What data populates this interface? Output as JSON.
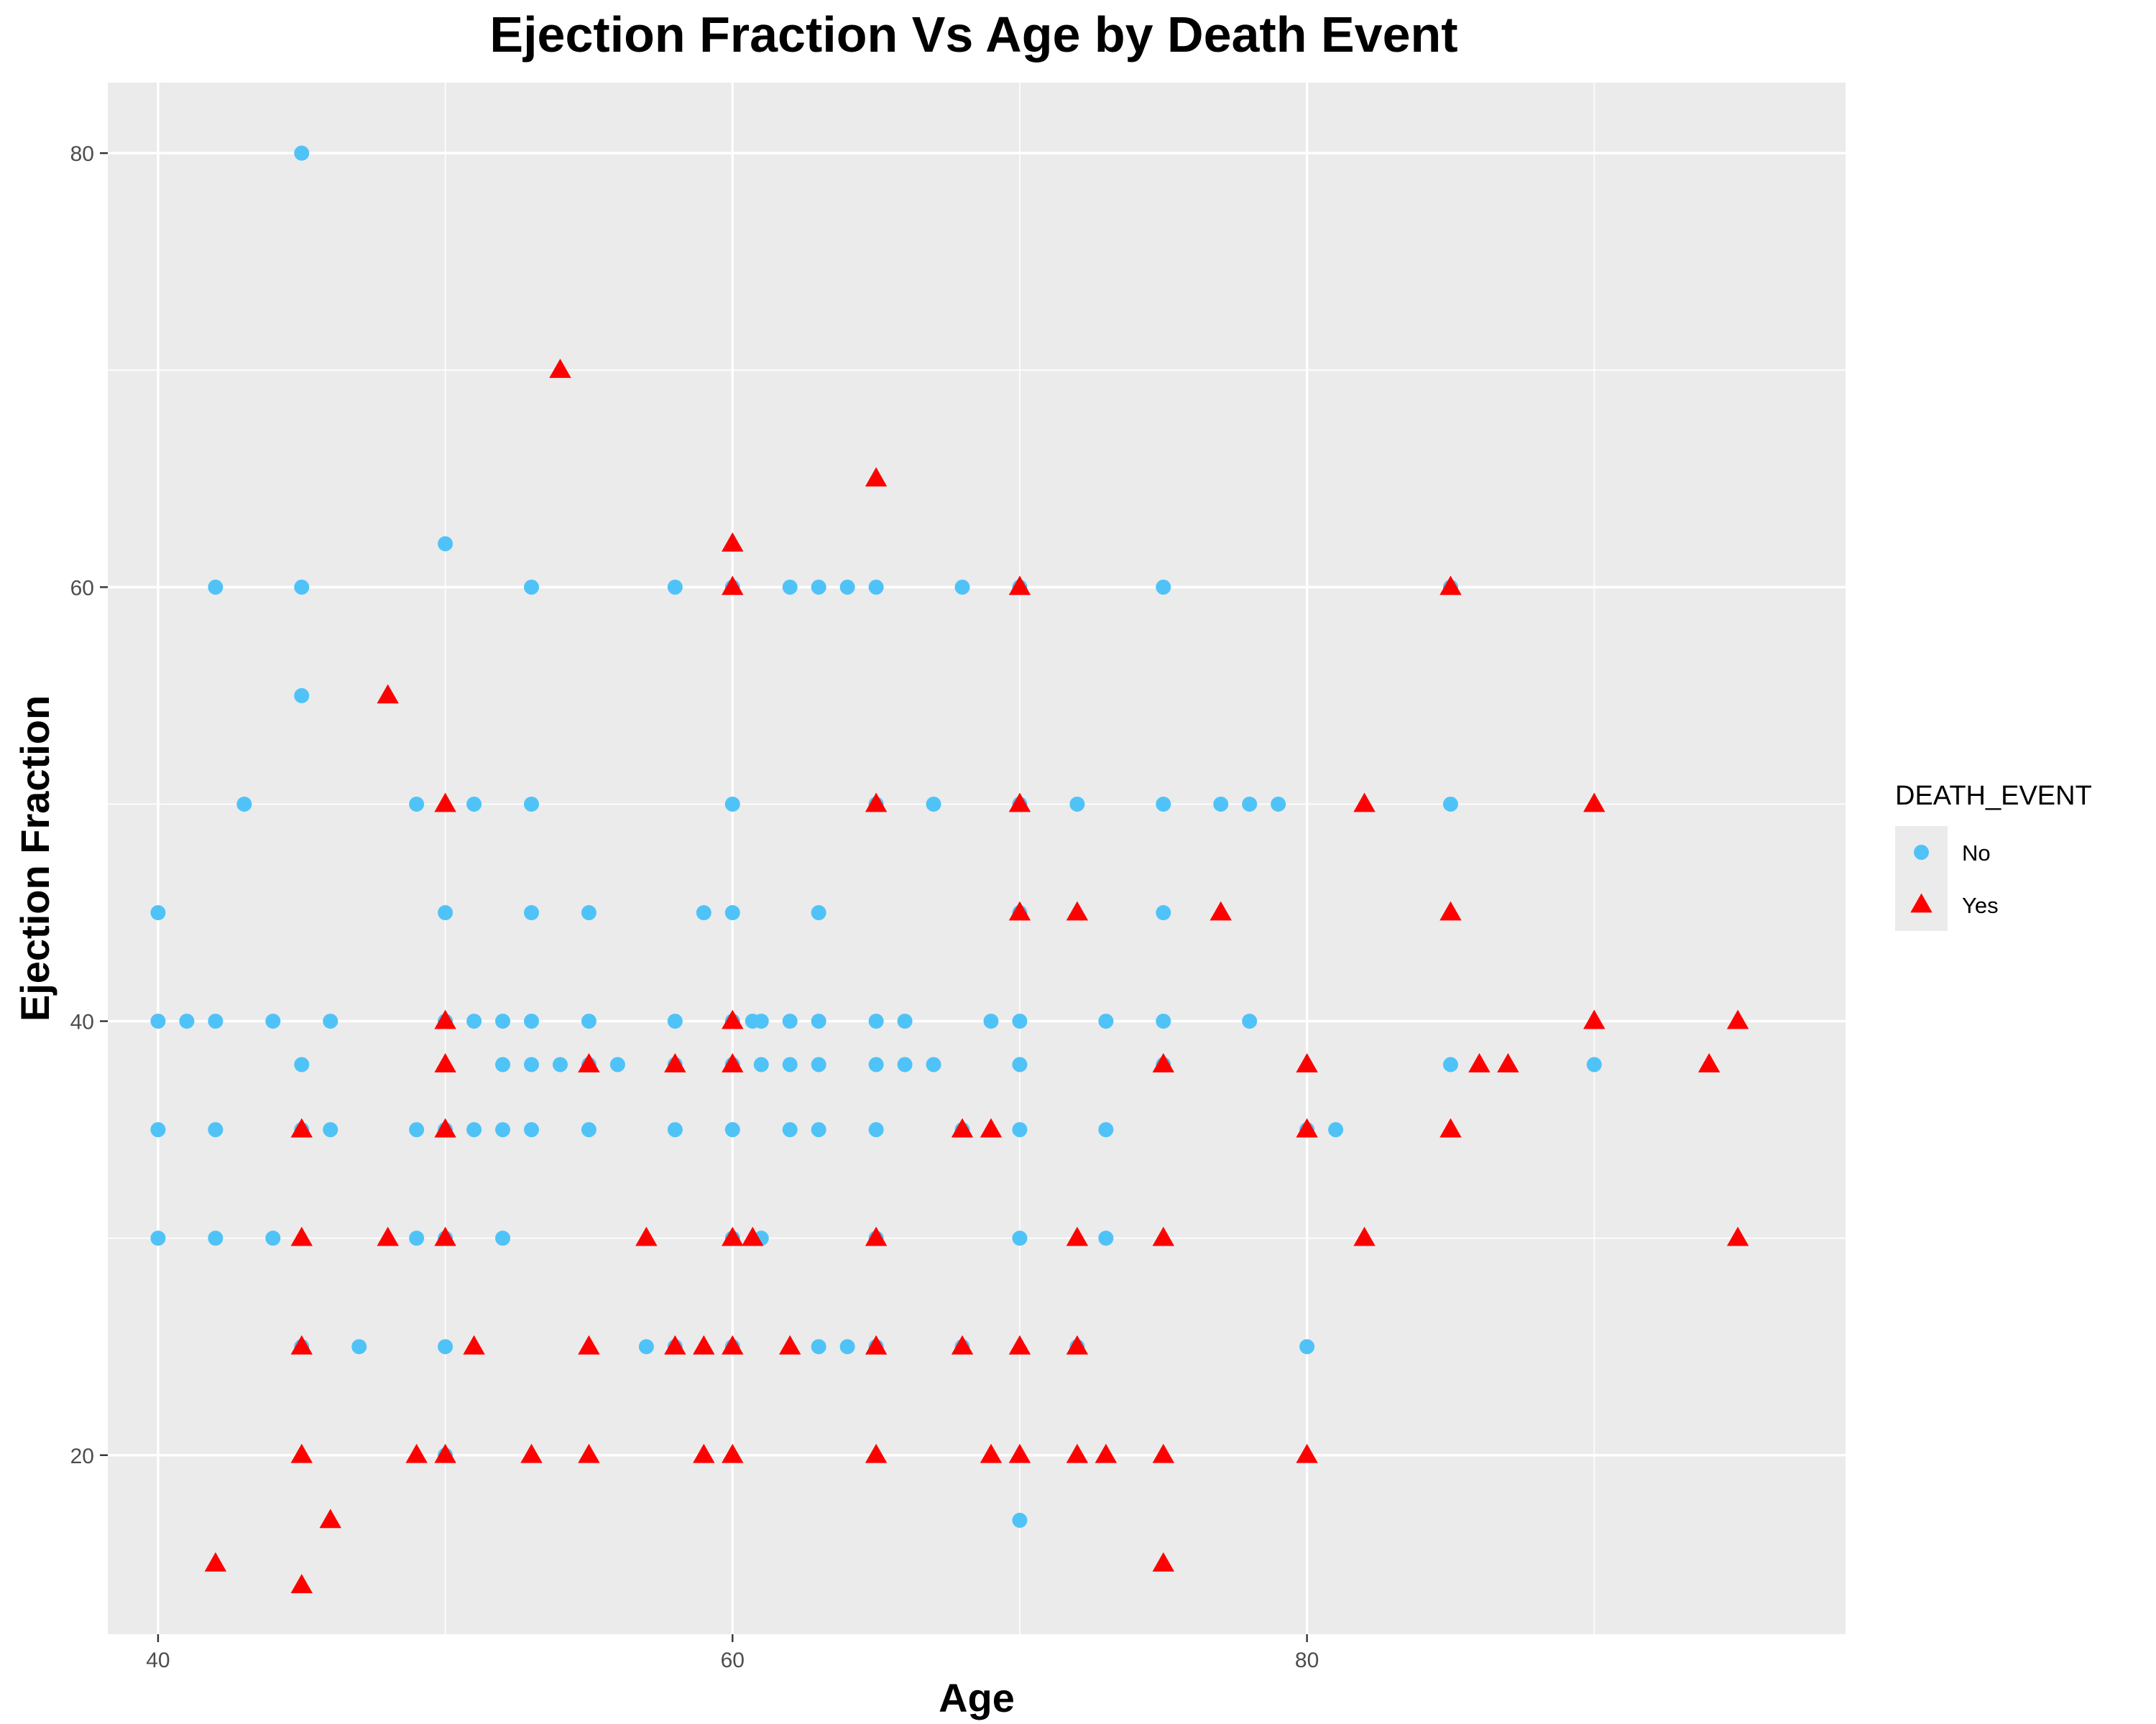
{
  "chart_data": {
    "type": "scatter",
    "title": "Ejection Fraction Vs Age by Death Event",
    "xlabel": "Age",
    "ylabel": "Ejection Fraction",
    "xlim": [
      38.25,
      98.75
    ],
    "ylim": [
      11.75,
      83.25
    ],
    "xticks": [
      40,
      60,
      80
    ],
    "yticks": [
      20,
      40,
      60,
      80
    ],
    "grid": true,
    "legend": {
      "title": "DEATH_EVENT",
      "position": "right"
    },
    "series": [
      {
        "name": "No",
        "marker": "circle",
        "color": "#4FC3F7",
        "points": [
          [
            45,
            80
          ],
          [
            50,
            62
          ],
          [
            42,
            60
          ],
          [
            45,
            60
          ],
          [
            53,
            60
          ],
          [
            58,
            60
          ],
          [
            60,
            60
          ],
          [
            62,
            60
          ],
          [
            63,
            60
          ],
          [
            64,
            60
          ],
          [
            65,
            60
          ],
          [
            68,
            60
          ],
          [
            70,
            60
          ],
          [
            75,
            60
          ],
          [
            85,
            60
          ],
          [
            45,
            55
          ],
          [
            43,
            50
          ],
          [
            49,
            50
          ],
          [
            51,
            50
          ],
          [
            53,
            50
          ],
          [
            60,
            50
          ],
          [
            65,
            50
          ],
          [
            67,
            50
          ],
          [
            70,
            50
          ],
          [
            72,
            50
          ],
          [
            75,
            50
          ],
          [
            77,
            50
          ],
          [
            78,
            50
          ],
          [
            79,
            50
          ],
          [
            85,
            50
          ],
          [
            40,
            45
          ],
          [
            50,
            45
          ],
          [
            53,
            45
          ],
          [
            55,
            45
          ],
          [
            59,
            45
          ],
          [
            60,
            45
          ],
          [
            63,
            45
          ],
          [
            70,
            45
          ],
          [
            75,
            45
          ],
          [
            40,
            40
          ],
          [
            41,
            40
          ],
          [
            42,
            40
          ],
          [
            44,
            40
          ],
          [
            46,
            40
          ],
          [
            50,
            40
          ],
          [
            51,
            40
          ],
          [
            52,
            40
          ],
          [
            53,
            40
          ],
          [
            55,
            40
          ],
          [
            58,
            40
          ],
          [
            60,
            40
          ],
          [
            60.7,
            40
          ],
          [
            61,
            40
          ],
          [
            62,
            40
          ],
          [
            63,
            40
          ],
          [
            65,
            40
          ],
          [
            66,
            40
          ],
          [
            69,
            40
          ],
          [
            70,
            40
          ],
          [
            73,
            40
          ],
          [
            75,
            40
          ],
          [
            78,
            40
          ],
          [
            45,
            38
          ],
          [
            52,
            38
          ],
          [
            53,
            38
          ],
          [
            54,
            38
          ],
          [
            55,
            38
          ],
          [
            56,
            38
          ],
          [
            58,
            38
          ],
          [
            60,
            38
          ],
          [
            61,
            38
          ],
          [
            62,
            38
          ],
          [
            63,
            38
          ],
          [
            65,
            38
          ],
          [
            66,
            38
          ],
          [
            67,
            38
          ],
          [
            70,
            38
          ],
          [
            75,
            38
          ],
          [
            85,
            38
          ],
          [
            90,
            38
          ],
          [
            40,
            35
          ],
          [
            42,
            35
          ],
          [
            45,
            35
          ],
          [
            46,
            35
          ],
          [
            49,
            35
          ],
          [
            50,
            35
          ],
          [
            51,
            35
          ],
          [
            52,
            35
          ],
          [
            53,
            35
          ],
          [
            55,
            35
          ],
          [
            58,
            35
          ],
          [
            60,
            35
          ],
          [
            62,
            35
          ],
          [
            63,
            35
          ],
          [
            65,
            35
          ],
          [
            68,
            35
          ],
          [
            70,
            35
          ],
          [
            73,
            35
          ],
          [
            80,
            35
          ],
          [
            81,
            35
          ],
          [
            40,
            30
          ],
          [
            42,
            30
          ],
          [
            44,
            30
          ],
          [
            49,
            30
          ],
          [
            50,
            30
          ],
          [
            52,
            30
          ],
          [
            60,
            30
          ],
          [
            61,
            30
          ],
          [
            65,
            30
          ],
          [
            70,
            30
          ],
          [
            73,
            30
          ],
          [
            45,
            25
          ],
          [
            47,
            25
          ],
          [
            50,
            25
          ],
          [
            57,
            25
          ],
          [
            58,
            25
          ],
          [
            60,
            25
          ],
          [
            63,
            25
          ],
          [
            64,
            25
          ],
          [
            65,
            25
          ],
          [
            68,
            25
          ],
          [
            72,
            25
          ],
          [
            80,
            25
          ],
          [
            50,
            20
          ],
          [
            70,
            17
          ]
        ]
      },
      {
        "name": "Yes",
        "marker": "triangle",
        "color": "#FF0000",
        "points": [
          [
            54,
            70
          ],
          [
            65,
            65
          ],
          [
            60,
            62
          ],
          [
            60,
            60
          ],
          [
            70,
            60
          ],
          [
            85,
            60
          ],
          [
            48,
            55
          ],
          [
            50,
            50
          ],
          [
            65,
            50
          ],
          [
            70,
            50
          ],
          [
            82,
            50
          ],
          [
            90,
            50
          ],
          [
            70,
            45
          ],
          [
            72,
            45
          ],
          [
            77,
            45
          ],
          [
            85,
            45
          ],
          [
            50,
            40
          ],
          [
            60,
            40
          ],
          [
            90,
            40
          ],
          [
            95,
            40
          ],
          [
            50,
            38
          ],
          [
            55,
            38
          ],
          [
            58,
            38
          ],
          [
            60,
            38
          ],
          [
            75,
            38
          ],
          [
            80,
            38
          ],
          [
            86,
            38
          ],
          [
            87,
            38
          ],
          [
            94,
            38
          ],
          [
            45,
            35
          ],
          [
            50,
            35
          ],
          [
            68,
            35
          ],
          [
            69,
            35
          ],
          [
            80,
            35
          ],
          [
            85,
            35
          ],
          [
            45,
            30
          ],
          [
            48,
            30
          ],
          [
            50,
            30
          ],
          [
            57,
            30
          ],
          [
            60,
            30
          ],
          [
            60.7,
            30
          ],
          [
            65,
            30
          ],
          [
            72,
            30
          ],
          [
            75,
            30
          ],
          [
            82,
            30
          ],
          [
            95,
            30
          ],
          [
            45,
            25
          ],
          [
            51,
            25
          ],
          [
            55,
            25
          ],
          [
            58,
            25
          ],
          [
            59,
            25
          ],
          [
            60,
            25
          ],
          [
            62,
            25
          ],
          [
            65,
            25
          ],
          [
            68,
            25
          ],
          [
            70,
            25
          ],
          [
            72,
            25
          ],
          [
            45,
            20
          ],
          [
            49,
            20
          ],
          [
            50,
            20
          ],
          [
            53,
            20
          ],
          [
            55,
            20
          ],
          [
            59,
            20
          ],
          [
            60,
            20
          ],
          [
            65,
            20
          ],
          [
            69,
            20
          ],
          [
            70,
            20
          ],
          [
            72,
            20
          ],
          [
            73,
            20
          ],
          [
            75,
            20
          ],
          [
            80,
            20
          ],
          [
            46,
            17
          ],
          [
            42,
            15
          ],
          [
            75,
            15
          ],
          [
            45,
            14
          ]
        ]
      }
    ]
  }
}
